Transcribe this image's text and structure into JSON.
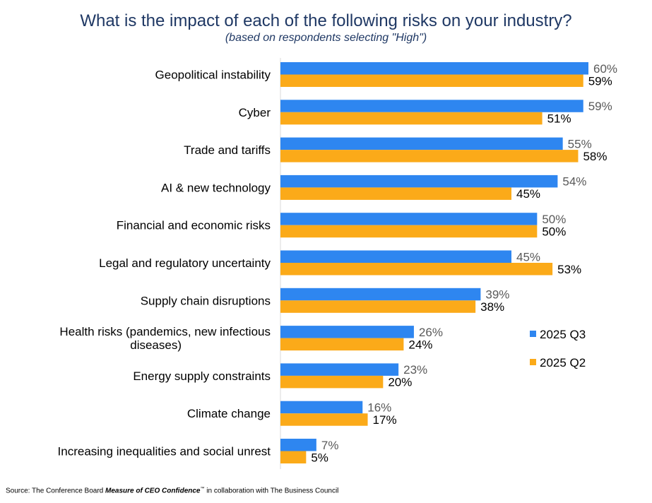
{
  "chart_data": {
    "type": "bar",
    "orientation": "horizontal",
    "title": "What is the impact of each of the following risks on your industry?",
    "subtitle": "(based on respondents selecting \"High\")",
    "categories": [
      [
        "Geopolitical instability"
      ],
      [
        "Cyber"
      ],
      [
        "Trade and tariffs"
      ],
      [
        "AI & new technology"
      ],
      [
        "Financial and economic risks"
      ],
      [
        "Legal and regulatory uncertainty"
      ],
      [
        "Supply chain disruptions"
      ],
      [
        "Health risks (pandemics, new infectious",
        "diseases)"
      ],
      [
        "Energy supply constraints"
      ],
      [
        "Climate change"
      ],
      [
        "Increasing inequalities and social unrest"
      ]
    ],
    "series": [
      {
        "name": "2025 Q3",
        "color": "#2e86f0",
        "values": [
          60,
          59,
          55,
          54,
          50,
          45,
          39,
          26,
          23,
          16,
          7
        ]
      },
      {
        "name": "2025 Q2",
        "color": "#fbaa19",
        "values": [
          59,
          51,
          58,
          45,
          50,
          53,
          38,
          24,
          20,
          17,
          5
        ]
      }
    ],
    "value_suffix": "%",
    "xlim": [
      0,
      60
    ],
    "legend_position": "right"
  },
  "footer": {
    "source_prefix": "Source: The Conference Board ",
    "source_publication": "Measure of CEO Confidence",
    "source_tm": "™",
    "source_suffix": " in collaboration with The Business Council"
  }
}
